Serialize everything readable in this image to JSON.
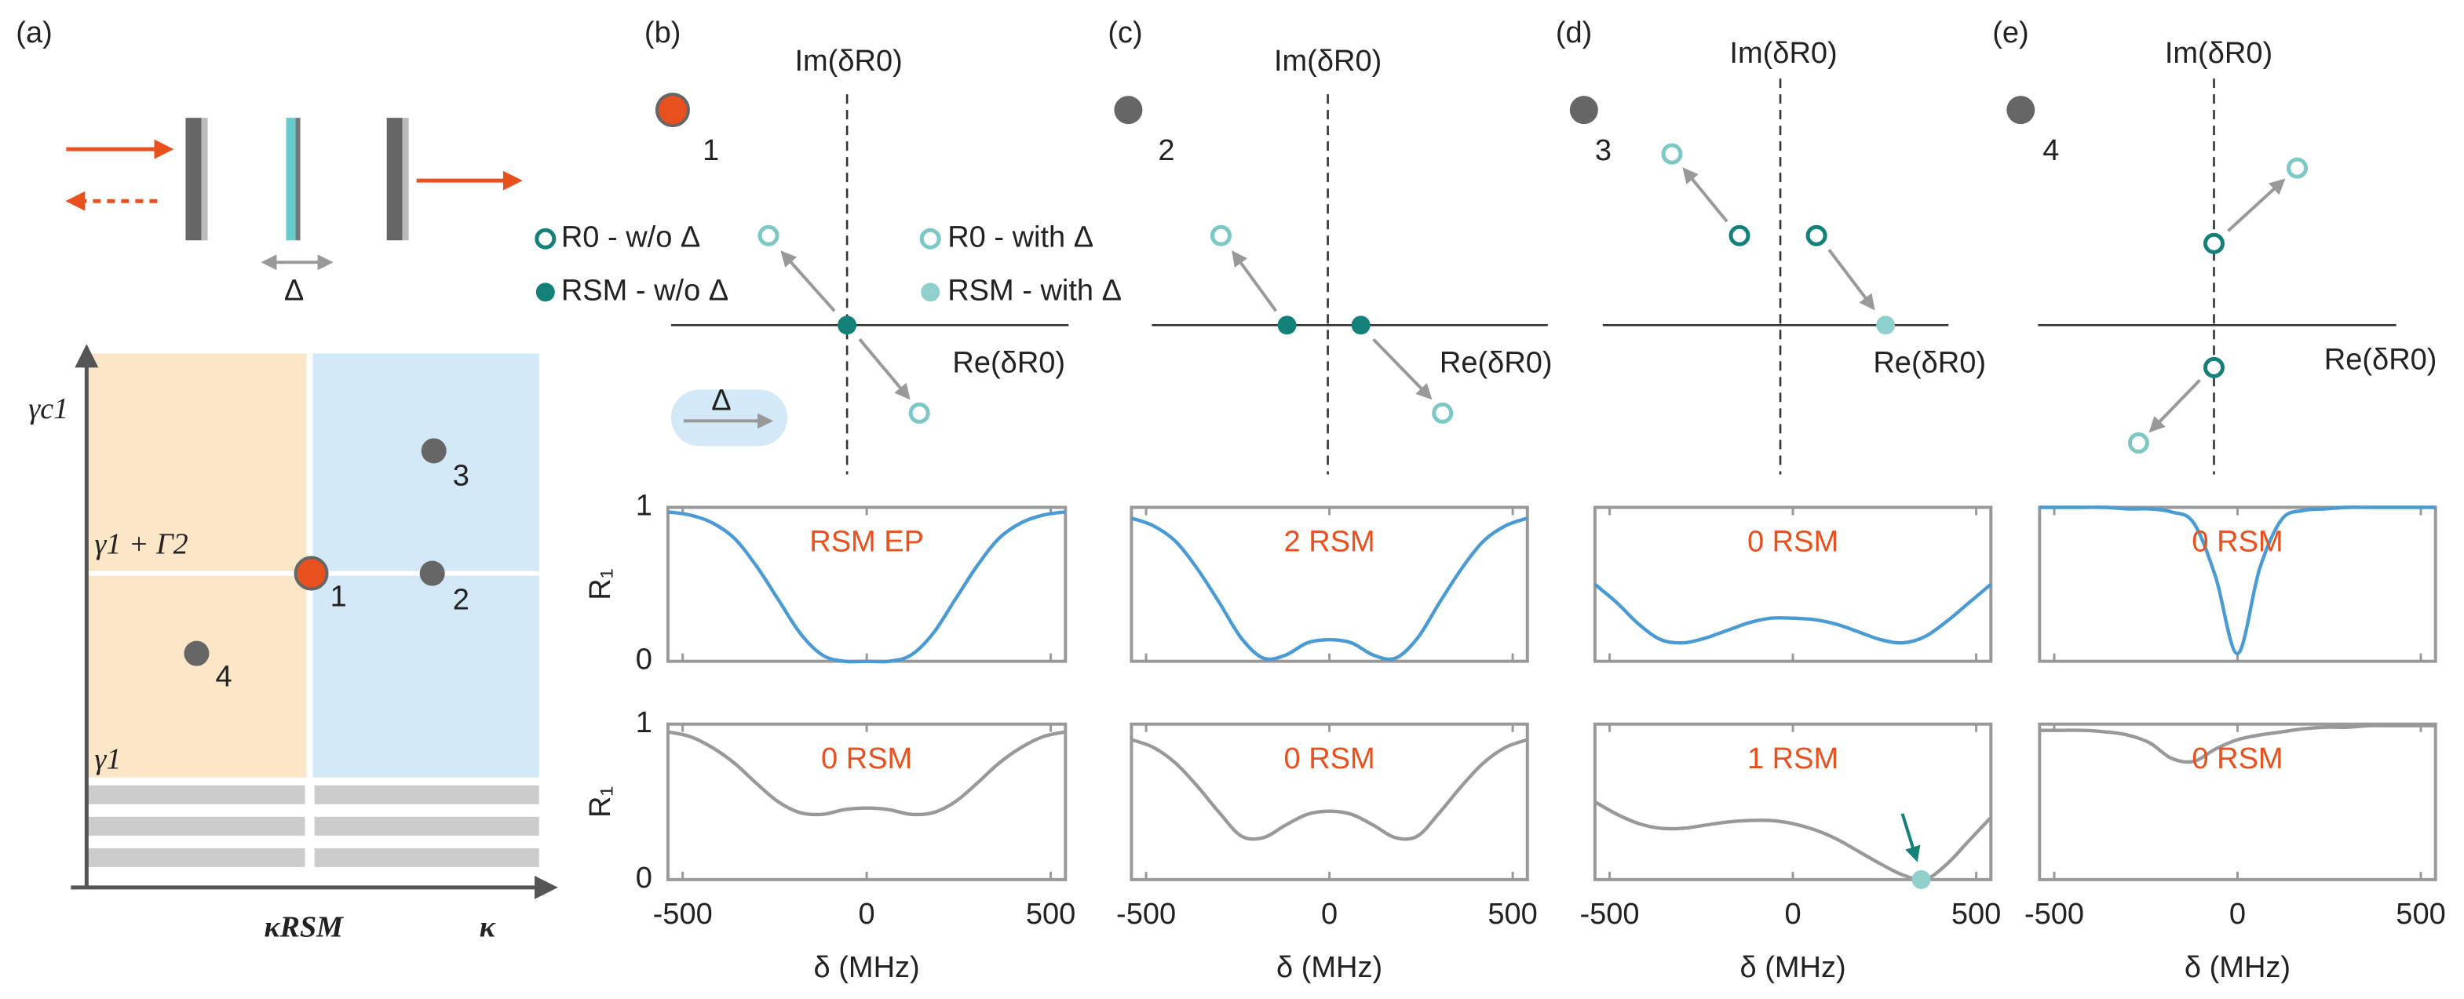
{
  "panel_labels": [
    "(a)",
    "(b)",
    "(c)",
    "(d)",
    "(e)"
  ],
  "schematic": {
    "delta": "Δ",
    "y_axis": "γc1",
    "y_levels": [
      "γ1 + Γ2",
      "γ1"
    ],
    "x_level": "κRSM",
    "x_axis": "κ",
    "points": [
      "1",
      "2",
      "3",
      "4"
    ]
  },
  "planes": [
    {
      "im": "Im(δR0)",
      "re": "Re(δR0)",
      "point": "1"
    },
    {
      "im": "Im(δR0)",
      "re": "Re(δR0)",
      "point": "2"
    },
    {
      "im": "Im(δR0)",
      "re": "Re(δR0)",
      "point": "3"
    },
    {
      "im": "Im(δR0)",
      "re": "Re(δR0)",
      "point": "4"
    }
  ],
  "legend": [
    "R0 - w/o Δ",
    "R0 - with Δ",
    "RSM - w/o Δ",
    "RSM - with Δ"
  ],
  "legend_delta": "Δ",
  "chart_data": [
    {
      "type": "line",
      "color": "#4a9bd4",
      "annotation": "RSM EP",
      "ylabel": "R₁",
      "xlim": [
        -540,
        540
      ],
      "ylim": [
        0,
        1
      ],
      "xticks": [
        -500,
        0,
        500
      ],
      "yticks": [
        0,
        1
      ],
      "x": [
        -540,
        -480,
        -420,
        -360,
        -300,
        -240,
        -180,
        -120,
        -60,
        0,
        60,
        120,
        180,
        240,
        300,
        360,
        420,
        480,
        540
      ],
      "values": [
        0.97,
        0.95,
        0.9,
        0.8,
        0.62,
        0.4,
        0.18,
        0.04,
        0,
        0,
        0,
        0.04,
        0.18,
        0.4,
        0.62,
        0.8,
        0.9,
        0.95,
        0.97
      ]
    },
    {
      "type": "line",
      "color": "#999999",
      "annotation": "0 RSM",
      "ylabel": "R₁",
      "xlabel": "δ (MHz)",
      "xlim": [
        -540,
        540
      ],
      "ylim": [
        0,
        1
      ],
      "xticks": [
        -500,
        0,
        500
      ],
      "yticks": [
        0,
        1
      ],
      "x": [
        -540,
        -480,
        -420,
        -360,
        -300,
        -240,
        -180,
        -120,
        -60,
        0,
        60,
        120,
        180,
        240,
        300,
        360,
        420,
        480,
        540
      ],
      "values": [
        0.95,
        0.92,
        0.85,
        0.75,
        0.62,
        0.5,
        0.43,
        0.42,
        0.45,
        0.46,
        0.45,
        0.42,
        0.43,
        0.5,
        0.62,
        0.75,
        0.85,
        0.92,
        0.95
      ]
    },
    {
      "type": "line",
      "color": "#4a9bd4",
      "annotation": "2 RSM",
      "xlim": [
        -540,
        540
      ],
      "ylim": [
        0,
        1
      ],
      "xticks": [
        -500,
        0,
        500
      ],
      "yticks": [
        0,
        1
      ],
      "x": [
        -540,
        -480,
        -420,
        -360,
        -300,
        -240,
        -180,
        -120,
        -60,
        0,
        60,
        120,
        180,
        240,
        300,
        360,
        420,
        480,
        540
      ],
      "values": [
        0.93,
        0.88,
        0.78,
        0.6,
        0.38,
        0.15,
        0.02,
        0.04,
        0.12,
        0.14,
        0.12,
        0.04,
        0.02,
        0.15,
        0.38,
        0.6,
        0.78,
        0.88,
        0.93
      ]
    },
    {
      "type": "line",
      "color": "#999999",
      "annotation": "0 RSM",
      "xlabel": "δ (MHz)",
      "xlim": [
        -540,
        540
      ],
      "ylim": [
        0,
        1
      ],
      "xticks": [
        -500,
        0,
        500
      ],
      "yticks": [
        0,
        1
      ],
      "x": [
        -540,
        -480,
        -420,
        -360,
        -300,
        -240,
        -180,
        -120,
        -60,
        0,
        60,
        120,
        180,
        240,
        300,
        360,
        420,
        480,
        540
      ],
      "values": [
        0.9,
        0.85,
        0.75,
        0.6,
        0.43,
        0.28,
        0.27,
        0.35,
        0.42,
        0.44,
        0.42,
        0.35,
        0.27,
        0.28,
        0.43,
        0.6,
        0.75,
        0.85,
        0.9
      ]
    },
    {
      "type": "line",
      "color": "#4a9bd4",
      "annotation": "0 RSM",
      "xlim": [
        -540,
        540
      ],
      "ylim": [
        0,
        1
      ],
      "xticks": [
        -500,
        0,
        500
      ],
      "yticks": [
        0,
        1
      ],
      "x": [
        -540,
        -480,
        -420,
        -360,
        -300,
        -240,
        -180,
        -120,
        -60,
        0,
        60,
        120,
        180,
        240,
        300,
        360,
        420,
        480,
        540
      ],
      "values": [
        0.5,
        0.38,
        0.24,
        0.14,
        0.12,
        0.15,
        0.2,
        0.25,
        0.28,
        0.28,
        0.27,
        0.24,
        0.19,
        0.14,
        0.12,
        0.16,
        0.26,
        0.38,
        0.5
      ]
    },
    {
      "type": "line",
      "color": "#999999",
      "annotation": "1 RSM",
      "xlabel": "δ (MHz)",
      "xlim": [
        -540,
        540
      ],
      "ylim": [
        0,
        1
      ],
      "xticks": [
        -500,
        0,
        500
      ],
      "yticks": [
        0,
        1
      ],
      "x": [
        -540,
        -480,
        -420,
        -360,
        -300,
        -240,
        -180,
        -120,
        -60,
        0,
        60,
        120,
        180,
        240,
        300,
        360,
        420,
        480,
        540
      ],
      "values": [
        0.5,
        0.42,
        0.36,
        0.33,
        0.33,
        0.35,
        0.37,
        0.38,
        0.38,
        0.36,
        0.32,
        0.26,
        0.18,
        0.1,
        0.03,
        0,
        0.1,
        0.25,
        0.4
      ],
      "highlight": {
        "x": 350,
        "y": 0
      }
    },
    {
      "type": "line",
      "color": "#4a9bd4",
      "annotation": "0 RSM",
      "xlim": [
        -540,
        540
      ],
      "ylim": [
        0,
        1
      ],
      "xticks": [
        -500,
        0,
        500
      ],
      "yticks": [
        0,
        1
      ],
      "x": [
        -540,
        -480,
        -420,
        -360,
        -300,
        -240,
        -180,
        -120,
        -60,
        0,
        60,
        120,
        180,
        240,
        300,
        360,
        420,
        480,
        540
      ],
      "values": [
        1,
        1,
        1,
        1,
        0.99,
        0.99,
        0.97,
        0.9,
        0.55,
        0.05,
        0.6,
        0.92,
        0.98,
        0.99,
        1,
        1,
        1,
        1,
        1
      ]
    },
    {
      "type": "line",
      "color": "#999999",
      "annotation": "0 RSM",
      "xlabel": "δ (MHz)",
      "xlim": [
        -540,
        540
      ],
      "ylim": [
        0,
        1
      ],
      "xticks": [
        -500,
        0,
        500
      ],
      "yticks": [
        0,
        1
      ],
      "x": [
        -540,
        -480,
        -420,
        -360,
        -300,
        -240,
        -180,
        -120,
        -60,
        0,
        60,
        120,
        180,
        240,
        300,
        360,
        420,
        480,
        540
      ],
      "values": [
        0.96,
        0.96,
        0.96,
        0.95,
        0.93,
        0.88,
        0.78,
        0.76,
        0.84,
        0.9,
        0.93,
        0.95,
        0.97,
        0.98,
        0.98,
        0.99,
        0.99,
        0.99,
        0.99
      ]
    }
  ]
}
